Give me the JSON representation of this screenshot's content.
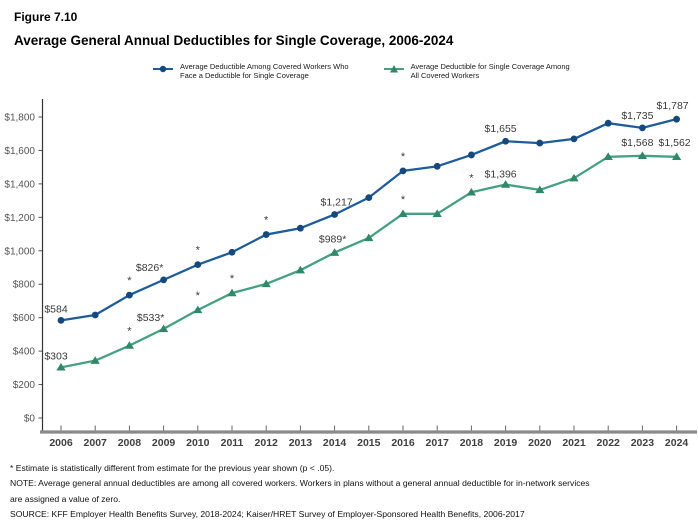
{
  "header": {
    "figure_number": "Figure 7.10",
    "title": "Average General Annual Deductibles for Single Coverage, 2006-2024"
  },
  "legend": {
    "items": [
      {
        "label_line1": "Average Deductible Among Covered Workers Who",
        "label_line2": "Face a Deductible for Single Coverage",
        "marker": "circle",
        "color": "#1E5C9B",
        "marker_color": "#15497E"
      },
      {
        "label_line1": "Average Deductible for Single Coverage Among",
        "label_line2": "All Covered Workers",
        "marker": "triangle",
        "color": "#46A083",
        "marker_color": "#2F8866"
      }
    ]
  },
  "chart_data": {
    "type": "line",
    "title": "Average General Annual Deductibles for Single Coverage, 2006-2024",
    "xlabel": "",
    "ylabel": "",
    "x": [
      2006,
      2007,
      2008,
      2009,
      2010,
      2011,
      2012,
      2013,
      2014,
      2015,
      2016,
      2017,
      2018,
      2019,
      2020,
      2021,
      2022,
      2023,
      2024
    ],
    "ylim": [
      0,
      1800
    ],
    "ytick_step": 200,
    "ytick_labels": [
      "$0",
      "$200",
      "$400",
      "$600",
      "$800",
      "$1,000",
      "$1,200",
      "$1,400",
      "$1,600",
      "$1,800"
    ],
    "grid": false,
    "legend_position": "top",
    "axis_color": "#333333",
    "baseline_color": "#8A8A8A",
    "tick_label_color": "#555555",
    "year_label_color": "#404040",
    "data_label_color": "#3A3A3A",
    "series": [
      {
        "name": "Average Deductible Among Covered Workers Who Face a Deductible for Single Coverage",
        "marker": "circle",
        "color": "#1E5C9B",
        "marker_color": "#15497E",
        "values": [
          584,
          616,
          735,
          826,
          917,
          991,
          1097,
          1135,
          1217,
          1318,
          1478,
          1505,
          1573,
          1655,
          1644,
          1669,
          1763,
          1735,
          1787
        ],
        "asterisk_years": [
          2008,
          2010,
          2012,
          2016
        ],
        "point_labels": [
          {
            "year": 2006,
            "text": "$584",
            "dx": -5,
            "dy": -8
          },
          {
            "year": 2009,
            "text": "$826*",
            "dx": -14,
            "dy": -9
          },
          {
            "year": 2014,
            "text": "$1,217",
            "dx": 2,
            "dy": -9
          },
          {
            "year": 2019,
            "text": "$1,655",
            "dx": -5,
            "dy": -9
          },
          {
            "year": 2023,
            "text": "$1,735",
            "dx": -5,
            "dy": -9
          },
          {
            "year": 2024,
            "text": "$1,787",
            "dx": -4,
            "dy": -10
          }
        ]
      },
      {
        "name": "Average Deductible for Single Coverage Among All Covered Workers",
        "marker": "triangle",
        "color": "#46A083",
        "marker_color": "#2F8866",
        "values": [
          303,
          343,
          433,
          533,
          646,
          747,
          802,
          884,
          989,
          1077,
          1221,
          1221,
          1350,
          1396,
          1364,
          1434,
          1562,
          1568,
          1562
        ],
        "asterisk_years": [
          2008,
          2010,
          2011,
          2016,
          2018
        ],
        "point_labels": [
          {
            "year": 2006,
            "text": "$303",
            "dx": -5,
            "dy": -8
          },
          {
            "year": 2009,
            "text": "$533*",
            "dx": -13,
            "dy": -8
          },
          {
            "year": 2014,
            "text": "$989*",
            "dx": -2,
            "dy": -10
          },
          {
            "year": 2019,
            "text": "$1,396",
            "dx": -5,
            "dy": -7
          },
          {
            "year": 2023,
            "text": "$1,568",
            "dx": -5,
            "dy": -10
          },
          {
            "year": 2024,
            "text": "$1,562",
            "dx": -2,
            "dy": -11
          }
        ]
      }
    ]
  },
  "footnotes": {
    "asterisk_note": "* Estimate is statistically different from estimate for the previous year shown (p < .05).",
    "note_line1": "NOTE: Average general annual deductibles are among all covered workers. Workers in plans without a general annual deductible for in-network services",
    "note_line2": "are assigned a value of zero.",
    "source": "SOURCE: KFF Employer Health Benefits Survey, 2018-2024; Kaiser/HRET Survey of Employer-Sponsored Health Benefits, 2006-2017"
  }
}
